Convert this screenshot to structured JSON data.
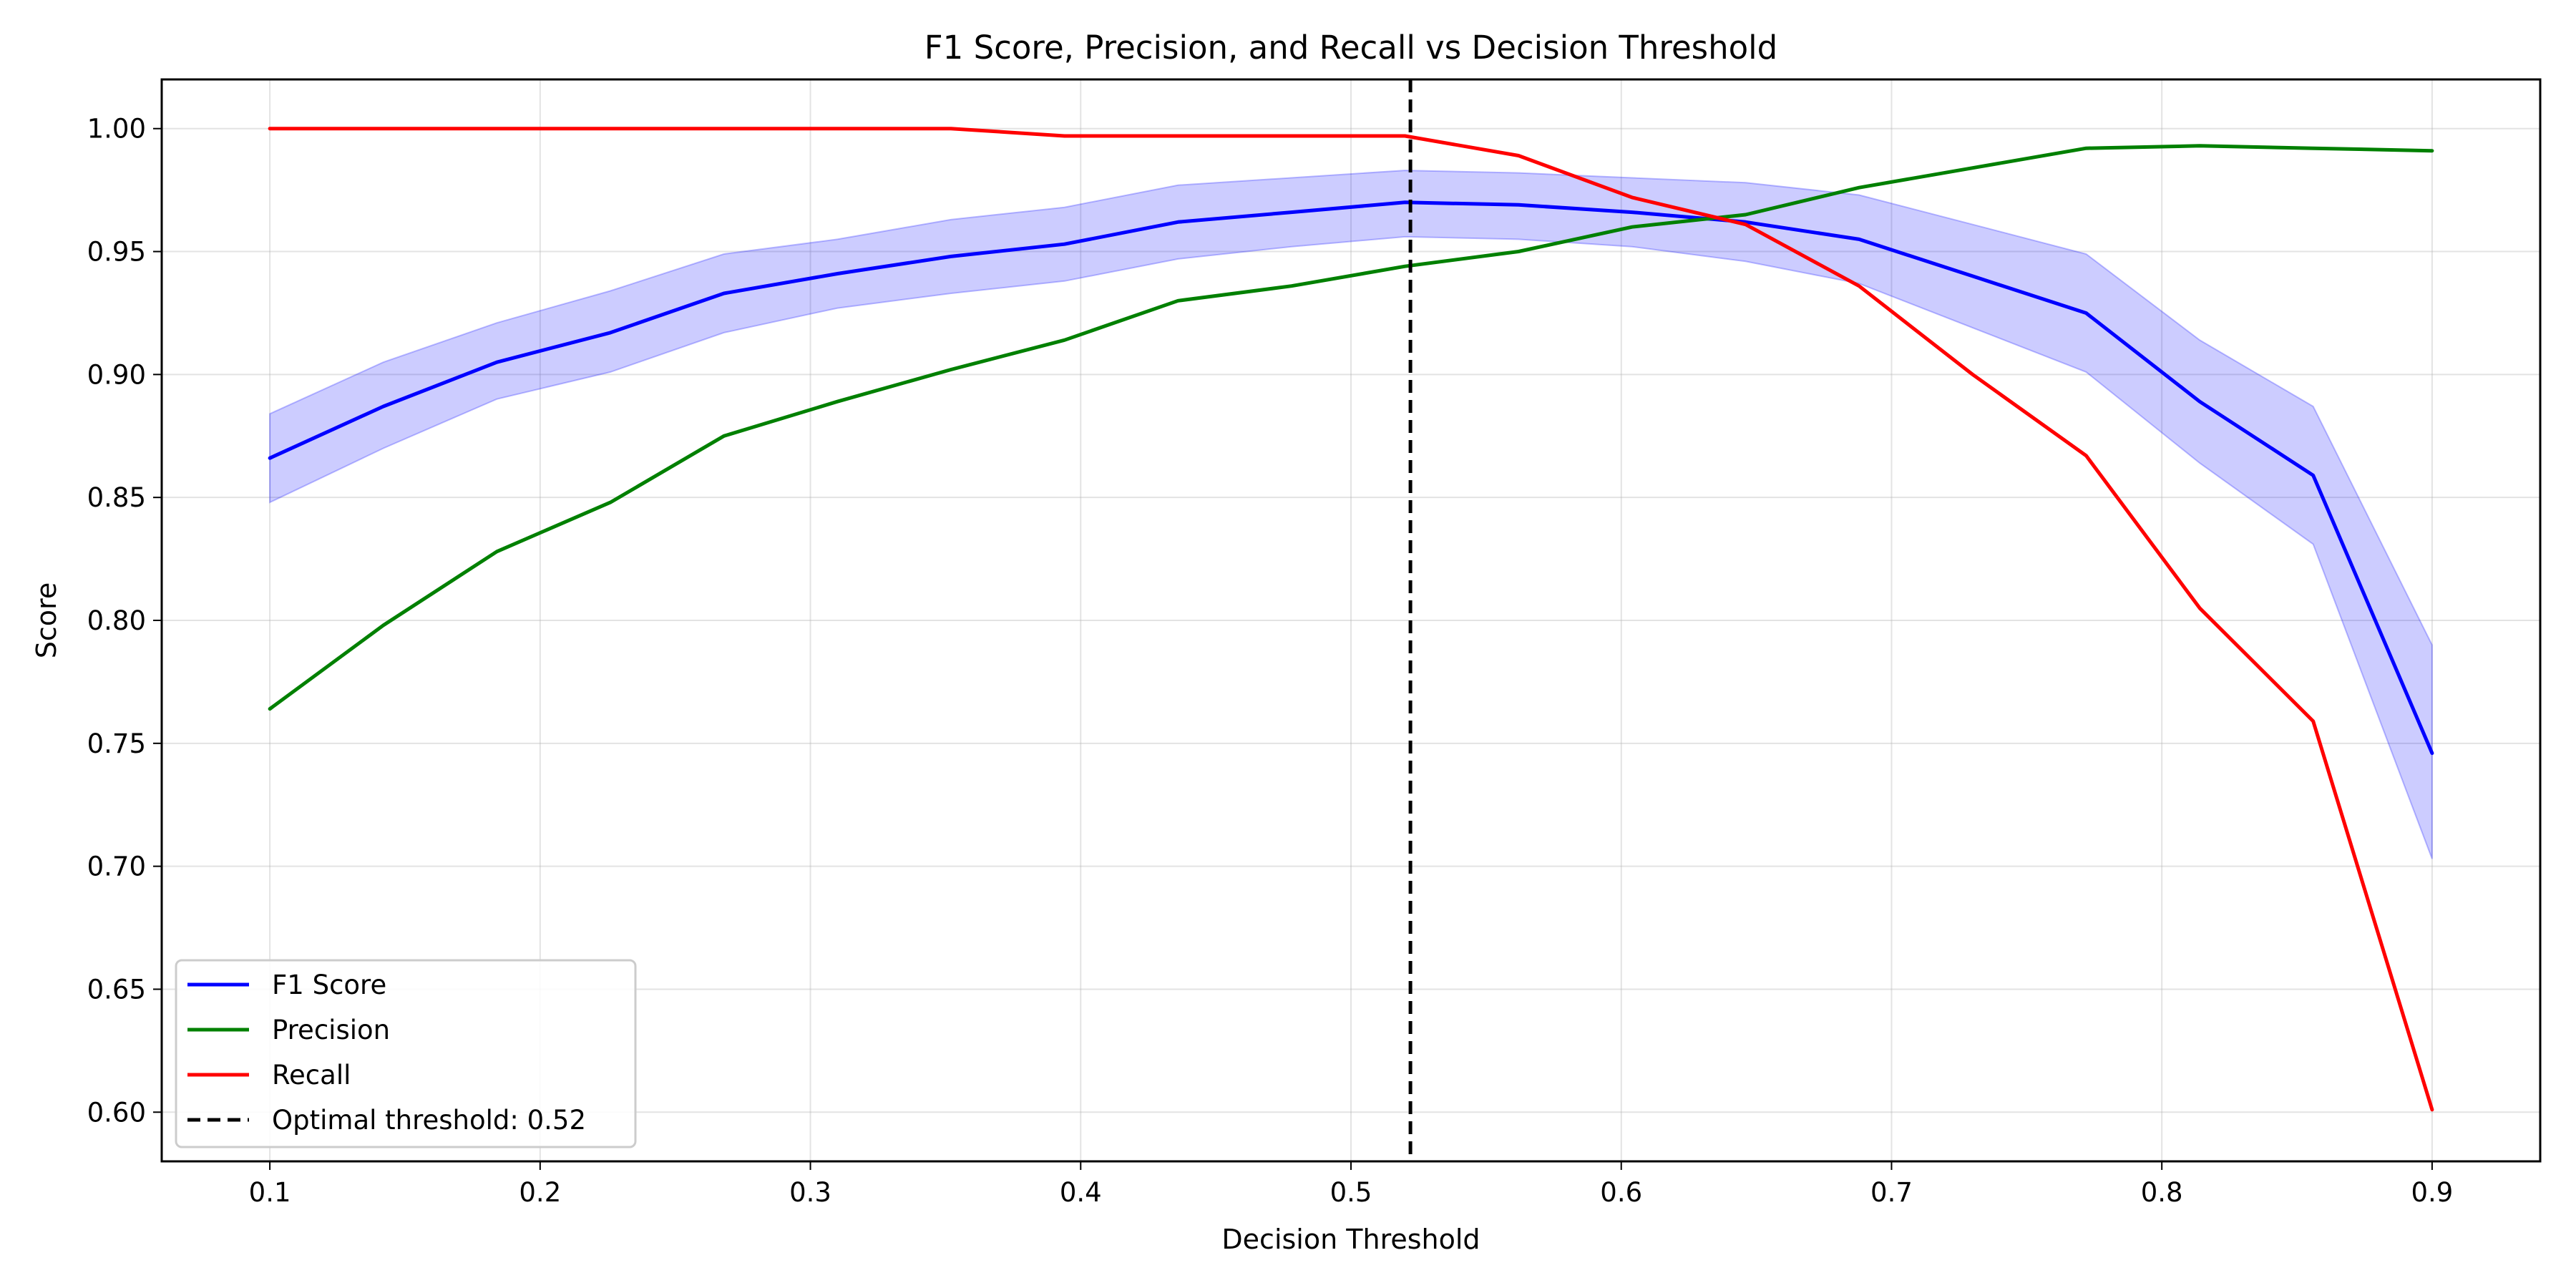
{
  "chart_data": {
    "type": "line",
    "title": "F1 Score, Precision, and Recall vs Decision Threshold",
    "xlabel": "Decision Threshold",
    "ylabel": "Score",
    "xlim": [
      0.06,
      0.94
    ],
    "ylim": [
      0.58,
      1.02
    ],
    "xticks": [
      "0.1",
      "0.2",
      "0.3",
      "0.4",
      "0.5",
      "0.6",
      "0.7",
      "0.8",
      "0.9"
    ],
    "yticks": [
      "0.60",
      "0.65",
      "0.70",
      "0.75",
      "0.80",
      "0.85",
      "0.90",
      "0.95",
      "1.00"
    ],
    "grid": true,
    "legend_position": "lower-left",
    "x": [
      0.1,
      0.142,
      0.184,
      0.226,
      0.268,
      0.31,
      0.352,
      0.394,
      0.436,
      0.478,
      0.52,
      0.562,
      0.604,
      0.646,
      0.688,
      0.73,
      0.772,
      0.814,
      0.856,
      0.9
    ],
    "series": [
      {
        "name": "F1 Score",
        "color": "#0000ff",
        "values": [
          0.866,
          0.887,
          0.905,
          0.917,
          0.933,
          0.941,
          0.948,
          0.953,
          0.962,
          0.966,
          0.97,
          0.969,
          0.966,
          0.962,
          0.955,
          0.94,
          0.925,
          0.889,
          0.859,
          0.746
        ],
        "band_lower": [
          0.848,
          0.87,
          0.89,
          0.901,
          0.917,
          0.927,
          0.933,
          0.938,
          0.947,
          0.952,
          0.956,
          0.955,
          0.952,
          0.946,
          0.937,
          0.919,
          0.901,
          0.864,
          0.831,
          0.703
        ],
        "band_upper": [
          0.884,
          0.905,
          0.921,
          0.934,
          0.949,
          0.955,
          0.963,
          0.968,
          0.977,
          0.98,
          0.983,
          0.982,
          0.98,
          0.978,
          0.973,
          0.961,
          0.949,
          0.914,
          0.887,
          0.79
        ],
        "band_color": "#0000ff"
      },
      {
        "name": "Precision",
        "color": "#008000",
        "values": [
          0.764,
          0.798,
          0.828,
          0.848,
          0.875,
          0.889,
          0.902,
          0.914,
          0.93,
          0.936,
          0.944,
          0.95,
          0.96,
          0.965,
          0.976,
          0.984,
          0.992,
          0.993,
          0.992,
          0.991
        ]
      },
      {
        "name": "Recall",
        "color": "#ff0000",
        "values": [
          1.0,
          1.0,
          1.0,
          1.0,
          1.0,
          1.0,
          1.0,
          0.997,
          0.997,
          0.997,
          0.997,
          0.989,
          0.972,
          0.961,
          0.936,
          0.9,
          0.867,
          0.805,
          0.759,
          0.601
        ]
      }
    ],
    "vline": {
      "x": 0.522,
      "name": "Optimal threshold: 0.52",
      "color": "#000000"
    }
  }
}
